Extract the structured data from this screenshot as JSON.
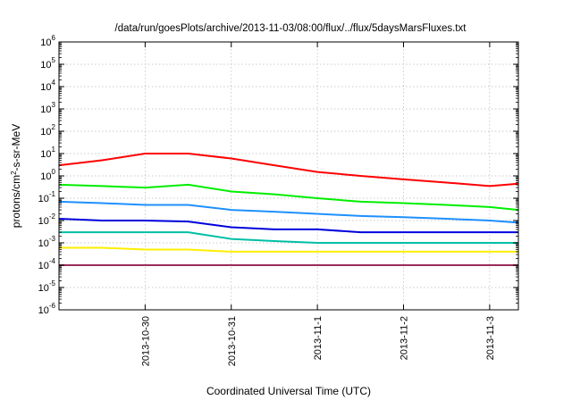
{
  "chart_data": {
    "type": "line",
    "title": "/data/run/goesPlots/archive/2013-11-03/08:00/flux/../flux/5daysMarsFluxes.txt",
    "xlabel": "Coordinated Universal Time (UTC)",
    "ylabel": {
      "prefix": "protons/cm",
      "sup": "2",
      "suffix": "-s-sr-MeV"
    },
    "yscale": "log",
    "ylim": [
      1e-06,
      1000000.0
    ],
    "xlim": [
      "2013-10-29 00:00",
      "2013-11-03 08:00"
    ],
    "grid": true,
    "legend": "none",
    "y_ticks": [
      {
        "base": "10",
        "exp": "-6"
      },
      {
        "base": "10",
        "exp": "-5"
      },
      {
        "base": "10",
        "exp": "-4"
      },
      {
        "base": "10",
        "exp": "-3"
      },
      {
        "base": "10",
        "exp": "-2"
      },
      {
        "base": "10",
        "exp": "-1"
      },
      {
        "base": "10",
        "exp": "0"
      },
      {
        "base": "10",
        "exp": "1"
      },
      {
        "base": "10",
        "exp": "2"
      },
      {
        "base": "10",
        "exp": "3"
      },
      {
        "base": "10",
        "exp": "4"
      },
      {
        "base": "10",
        "exp": "5"
      },
      {
        "base": "10",
        "exp": "6"
      }
    ],
    "x_ticks": [
      {
        "date": "2013-10-30",
        "label": "2013-10-30"
      },
      {
        "date": "2013-10-31",
        "label": "2013-10-31"
      },
      {
        "date": "2013-11-01",
        "label": "2013-11-1"
      },
      {
        "date": "2013-11-02",
        "label": "2013-11-2"
      },
      {
        "date": "2013-11-03",
        "label": "2013-11-3"
      }
    ],
    "series": [
      {
        "color": "#ff0000",
        "x": [
          "2013-10-29 00:00",
          "2013-10-29 12:00",
          "2013-10-30 00:00",
          "2013-10-30 12:00",
          "2013-10-31 00:00",
          "2013-10-31 12:00",
          "2013-11-01 00:00",
          "2013-11-01 12:00",
          "2013-11-02 00:00",
          "2013-11-02 12:00",
          "2013-11-03 00:00",
          "2013-11-03 08:00"
        ],
        "y": [
          3,
          5,
          10,
          10,
          6,
          3,
          1.5,
          1.0,
          0.7,
          0.5,
          0.35,
          0.45
        ]
      },
      {
        "color": "#00ee00",
        "x": [
          "2013-10-29 00:00",
          "2013-10-29 12:00",
          "2013-10-30 00:00",
          "2013-10-30 12:00",
          "2013-10-31 00:00",
          "2013-10-31 12:00",
          "2013-11-01 00:00",
          "2013-11-01 12:00",
          "2013-11-02 00:00",
          "2013-11-02 12:00",
          "2013-11-03 00:00",
          "2013-11-03 08:00"
        ],
        "y": [
          0.4,
          0.35,
          0.3,
          0.4,
          0.2,
          0.15,
          0.1,
          0.07,
          0.06,
          0.05,
          0.04,
          0.03
        ]
      },
      {
        "color": "#1e90ff",
        "x": [
          "2013-10-29 00:00",
          "2013-10-29 12:00",
          "2013-10-30 00:00",
          "2013-10-30 12:00",
          "2013-10-31 00:00",
          "2013-10-31 12:00",
          "2013-11-01 00:00",
          "2013-11-01 12:00",
          "2013-11-02 00:00",
          "2013-11-02 12:00",
          "2013-11-03 00:00",
          "2013-11-03 08:00"
        ],
        "y": [
          0.07,
          0.06,
          0.05,
          0.05,
          0.03,
          0.025,
          0.02,
          0.016,
          0.014,
          0.012,
          0.01,
          0.008
        ]
      },
      {
        "color": "#0000dd",
        "x": [
          "2013-10-29 00:00",
          "2013-10-29 12:00",
          "2013-10-30 00:00",
          "2013-10-30 12:00",
          "2013-10-31 00:00",
          "2013-10-31 12:00",
          "2013-11-01 00:00",
          "2013-11-01 12:00",
          "2013-11-02 00:00",
          "2013-11-02 12:00",
          "2013-11-03 00:00",
          "2013-11-03 08:00"
        ],
        "y": [
          0.012,
          0.01,
          0.01,
          0.009,
          0.005,
          0.004,
          0.004,
          0.003,
          0.003,
          0.003,
          0.003,
          0.003
        ]
      },
      {
        "color": "#00bfa5",
        "x": [
          "2013-10-29 00:00",
          "2013-10-29 12:00",
          "2013-10-30 00:00",
          "2013-10-30 12:00",
          "2013-10-31 00:00",
          "2013-10-31 12:00",
          "2013-11-01 00:00",
          "2013-11-01 12:00",
          "2013-11-02 00:00",
          "2013-11-02 12:00",
          "2013-11-03 00:00",
          "2013-11-03 08:00"
        ],
        "y": [
          0.003,
          0.003,
          0.003,
          0.003,
          0.0015,
          0.0012,
          0.001,
          0.001,
          0.001,
          0.001,
          0.001,
          0.001
        ]
      },
      {
        "color": "#ffee00",
        "x": [
          "2013-10-29 00:00",
          "2013-10-29 12:00",
          "2013-10-30 00:00",
          "2013-10-30 12:00",
          "2013-10-31 00:00",
          "2013-10-31 12:00",
          "2013-11-01 00:00",
          "2013-11-01 12:00",
          "2013-11-02 00:00",
          "2013-11-02 12:00",
          "2013-11-03 00:00",
          "2013-11-03 08:00"
        ],
        "y": [
          0.0006,
          0.0006,
          0.0005,
          0.0005,
          0.0004,
          0.0004,
          0.0004,
          0.0004,
          0.0004,
          0.0004,
          0.0004,
          0.0004
        ]
      },
      {
        "color": "#9b2c5a",
        "x": [
          "2013-10-29 00:00",
          "2013-10-29 12:00",
          "2013-10-30 00:00",
          "2013-10-30 12:00",
          "2013-10-31 00:00",
          "2013-10-31 12:00",
          "2013-11-01 00:00",
          "2013-11-01 12:00",
          "2013-11-02 00:00",
          "2013-11-02 12:00",
          "2013-11-03 00:00",
          "2013-11-03 08:00"
        ],
        "y": [
          0.0001,
          0.0001,
          0.0001,
          0.0001,
          0.0001,
          0.0001,
          0.0001,
          0.0001,
          0.0001,
          0.0001,
          0.0001,
          0.0001
        ]
      }
    ]
  }
}
